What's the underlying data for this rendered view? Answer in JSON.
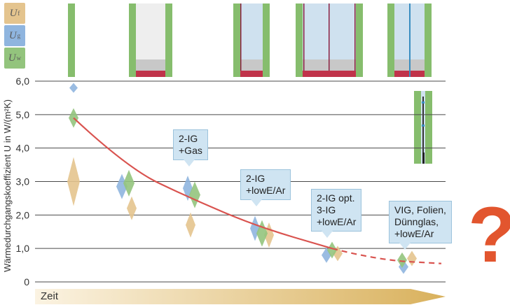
{
  "legend": [
    {
      "symbol": "U",
      "sub": "f",
      "color": "#e4c48e"
    },
    {
      "symbol": "U",
      "sub": "g",
      "color": "#8fb5df"
    },
    {
      "symbol": "U",
      "sub": "w",
      "color": "#93c47d"
    }
  ],
  "colors": {
    "frame": "#86bd6d",
    "glass_clear": "#eeeeee",
    "glass_coated": "#cfe1ef",
    "spacer": "#c8c8c8",
    "seal": "#c0334a",
    "pane": "#8a2040",
    "trend": "#d9534f",
    "arrow_start": "#fbf3e2",
    "arrow_end": "#d9b15c"
  },
  "chart_data": {
    "type": "scatter",
    "title": "",
    "xlabel": "Zeit",
    "ylabel": "Wärmedurchgangskoeffizient U in W/(m²K)",
    "ylim": [
      0,
      6
    ],
    "yticks": [
      "0",
      "1,0",
      "2,0",
      "3,0",
      "4,0",
      "5,0",
      "6,0"
    ],
    "grid": true,
    "groups": [
      {
        "x": 1,
        "Uf": 3.0,
        "Ug": 5.8,
        "Uw": 4.9
      },
      {
        "x": 2,
        "Uf": 2.2,
        "Ug": 2.85,
        "Uw": 2.95
      },
      {
        "x": 3,
        "Uf": 1.7,
        "Ug": 2.8,
        "Uw": 2.6
      },
      {
        "x": 4,
        "Uf": 1.4,
        "Ug": 1.6,
        "Uw": 1.45
      },
      {
        "x": 5,
        "Uf": 0.85,
        "Ug": 0.8,
        "Uw": 0.95
      },
      {
        "x": 6,
        "Uf": 0.7,
        "Ug": 0.45,
        "Uw": 0.65
      }
    ],
    "trend": {
      "name": "Uw trend",
      "solid": [
        [
          1,
          4.9
        ],
        [
          2,
          3.4
        ],
        [
          3,
          2.5
        ],
        [
          4,
          1.65
        ],
        [
          5,
          1.0
        ]
      ],
      "dashed": [
        [
          5,
          1.0
        ],
        [
          5.6,
          0.66
        ],
        [
          6.5,
          0.55
        ]
      ]
    },
    "callouts": [
      {
        "text": "2-IG\n+Gas",
        "x": 3
      },
      {
        "text": "2-IG\n+lowE/Ar",
        "x": 4
      },
      {
        "text": "2-IG opt.\n3-IG\n+lowE/Ar",
        "x": 5
      },
      {
        "text": "VIG, Folien,\nDünnglas,\n+lowE/Ar",
        "x": 6
      }
    ]
  },
  "question_mark": "?",
  "time_label": "Zeit"
}
